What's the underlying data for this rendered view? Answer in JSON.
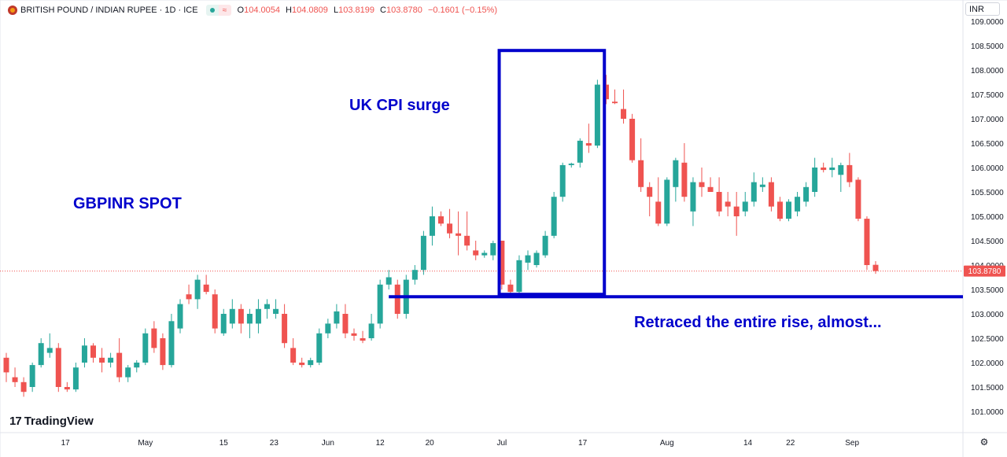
{
  "header": {
    "title": "BRITISH POUND / INDIAN RUPEE · 1D · ICE",
    "ohlc": [
      {
        "key": "O",
        "value": "104.0054"
      },
      {
        "key": "H",
        "value": "104.0809"
      },
      {
        "key": "L",
        "value": "103.8199"
      },
      {
        "key": "C",
        "value": "103.8780"
      }
    ],
    "change": "−0.1601 (−0.15%)",
    "wave_icon": "≈"
  },
  "currency_button": "INR",
  "brand": "TradingView",
  "brand_icon": "17",
  "settings_icon": "gear-icon",
  "colors": {
    "up": "#26a69a",
    "down": "#ef5350",
    "annotation": "#0000cc",
    "price_tag": "#ef5350"
  },
  "annotations": {
    "left_label": "GBPINR SPOT",
    "surge_label": "UK CPI surge",
    "retrace_label": "Retraced the entire rise, almost..."
  },
  "chart_data": {
    "type": "candlestick",
    "symbol": "GBPINR",
    "interval": "1D",
    "ylim": [
      100.7,
      109.1
    ],
    "y_ticks": [
      "109.0000",
      "108.5000",
      "108.0000",
      "107.5000",
      "107.0000",
      "106.5000",
      "106.0000",
      "105.5000",
      "105.0000",
      "104.5000",
      "104.0000",
      "103.5000",
      "103.0000",
      "102.5000",
      "102.0000",
      "101.5000",
      "101.0000"
    ],
    "last_price": "103.8780",
    "x_ticks": [
      {
        "label": "17",
        "index": 6.8
      },
      {
        "label": "May",
        "index": 16
      },
      {
        "label": "15",
        "index": 25
      },
      {
        "label": "23",
        "index": 30.8
      },
      {
        "label": "Jun",
        "index": 37
      },
      {
        "label": "12",
        "index": 43
      },
      {
        "label": "20",
        "index": 48.7
      },
      {
        "label": "Jul",
        "index": 57
      },
      {
        "label": "17",
        "index": 66.3
      },
      {
        "label": "Aug",
        "index": 76
      },
      {
        "label": "14",
        "index": 85.3
      },
      {
        "label": "22",
        "index": 90.2
      },
      {
        "label": "Sep",
        "index": 97.3
      }
    ],
    "candles": [
      {
        "o": 102.1,
        "h": 102.2,
        "l": 101.6,
        "c": 101.8
      },
      {
        "o": 101.7,
        "h": 101.9,
        "l": 101.5,
        "c": 101.6
      },
      {
        "o": 101.6,
        "h": 101.7,
        "l": 101.3,
        "c": 101.4
      },
      {
        "o": 101.5,
        "h": 102.0,
        "l": 101.4,
        "c": 101.95
      },
      {
        "o": 101.95,
        "h": 102.5,
        "l": 101.9,
        "c": 102.4
      },
      {
        "o": 102.2,
        "h": 102.6,
        "l": 102.1,
        "c": 102.3
      },
      {
        "o": 102.3,
        "h": 102.4,
        "l": 101.4,
        "c": 101.5
      },
      {
        "o": 101.5,
        "h": 101.6,
        "l": 101.4,
        "c": 101.45
      },
      {
        "o": 101.45,
        "h": 102.0,
        "l": 101.4,
        "c": 101.9
      },
      {
        "o": 102.0,
        "h": 102.5,
        "l": 101.9,
        "c": 102.35
      },
      {
        "o": 102.35,
        "h": 102.4,
        "l": 102.0,
        "c": 102.1
      },
      {
        "o": 102.1,
        "h": 102.3,
        "l": 101.8,
        "c": 102.0
      },
      {
        "o": 102.0,
        "h": 102.2,
        "l": 101.9,
        "c": 102.1
      },
      {
        "o": 102.2,
        "h": 102.5,
        "l": 101.6,
        "c": 101.7
      },
      {
        "o": 101.7,
        "h": 101.95,
        "l": 101.6,
        "c": 101.9
      },
      {
        "o": 101.9,
        "h": 102.05,
        "l": 101.8,
        "c": 102.0
      },
      {
        "o": 102.0,
        "h": 102.7,
        "l": 101.95,
        "c": 102.6
      },
      {
        "o": 102.7,
        "h": 102.85,
        "l": 102.2,
        "c": 102.3
      },
      {
        "o": 102.5,
        "h": 102.6,
        "l": 101.85,
        "c": 101.95
      },
      {
        "o": 101.95,
        "h": 103.0,
        "l": 101.9,
        "c": 102.85
      },
      {
        "o": 102.7,
        "h": 103.3,
        "l": 102.6,
        "c": 103.2
      },
      {
        "o": 103.4,
        "h": 103.6,
        "l": 103.2,
        "c": 103.3
      },
      {
        "o": 103.3,
        "h": 103.8,
        "l": 103.1,
        "c": 103.7
      },
      {
        "o": 103.6,
        "h": 103.8,
        "l": 103.4,
        "c": 103.45
      },
      {
        "o": 103.4,
        "h": 103.5,
        "l": 102.6,
        "c": 102.7
      },
      {
        "o": 102.6,
        "h": 103.1,
        "l": 102.55,
        "c": 103.0
      },
      {
        "o": 102.8,
        "h": 103.3,
        "l": 102.7,
        "c": 103.1
      },
      {
        "o": 103.1,
        "h": 103.2,
        "l": 102.6,
        "c": 102.8
      },
      {
        "o": 102.8,
        "h": 103.1,
        "l": 102.5,
        "c": 103.0
      },
      {
        "o": 102.8,
        "h": 103.3,
        "l": 102.6,
        "c": 103.1
      },
      {
        "o": 103.1,
        "h": 103.3,
        "l": 102.9,
        "c": 103.2
      },
      {
        "o": 103.0,
        "h": 103.3,
        "l": 102.9,
        "c": 103.1
      },
      {
        "o": 103.0,
        "h": 103.2,
        "l": 102.3,
        "c": 102.4
      },
      {
        "o": 102.3,
        "h": 102.5,
        "l": 101.95,
        "c": 102.0
      },
      {
        "o": 102.0,
        "h": 102.1,
        "l": 101.9,
        "c": 101.95
      },
      {
        "o": 101.95,
        "h": 102.1,
        "l": 101.9,
        "c": 102.05
      },
      {
        "o": 102.0,
        "h": 102.7,
        "l": 101.95,
        "c": 102.6
      },
      {
        "o": 102.6,
        "h": 102.9,
        "l": 102.5,
        "c": 102.8
      },
      {
        "o": 102.8,
        "h": 103.2,
        "l": 102.7,
        "c": 103.05
      },
      {
        "o": 103.0,
        "h": 103.2,
        "l": 102.5,
        "c": 102.6
      },
      {
        "o": 102.6,
        "h": 102.7,
        "l": 102.45,
        "c": 102.55
      },
      {
        "o": 102.5,
        "h": 102.65,
        "l": 102.4,
        "c": 102.45
      },
      {
        "o": 102.5,
        "h": 103.0,
        "l": 102.45,
        "c": 102.8
      },
      {
        "o": 102.8,
        "h": 103.7,
        "l": 102.7,
        "c": 103.6
      },
      {
        "o": 103.6,
        "h": 103.9,
        "l": 103.5,
        "c": 103.75
      },
      {
        "o": 103.6,
        "h": 103.7,
        "l": 102.9,
        "c": 103.0
      },
      {
        "o": 103.0,
        "h": 103.8,
        "l": 102.9,
        "c": 103.7
      },
      {
        "o": 103.7,
        "h": 104.0,
        "l": 103.6,
        "c": 103.9
      },
      {
        "o": 103.9,
        "h": 104.7,
        "l": 103.8,
        "c": 104.6
      },
      {
        "o": 104.6,
        "h": 105.2,
        "l": 104.4,
        "c": 105.0
      },
      {
        "o": 105.0,
        "h": 105.1,
        "l": 104.8,
        "c": 104.85
      },
      {
        "o": 104.85,
        "h": 105.15,
        "l": 104.55,
        "c": 104.65
      },
      {
        "o": 104.65,
        "h": 105.1,
        "l": 104.2,
        "c": 104.6
      },
      {
        "o": 104.6,
        "h": 105.1,
        "l": 104.3,
        "c": 104.4
      },
      {
        "o": 104.3,
        "h": 104.5,
        "l": 104.1,
        "c": 104.2
      },
      {
        "o": 104.2,
        "h": 104.3,
        "l": 104.15,
        "c": 104.25
      },
      {
        "o": 104.2,
        "h": 104.5,
        "l": 104.1,
        "c": 104.45
      },
      {
        "o": 104.5,
        "h": 104.5,
        "l": 103.5,
        "c": 103.6
      },
      {
        "o": 103.6,
        "h": 103.7,
        "l": 103.4,
        "c": 103.45
      },
      {
        "o": 103.45,
        "h": 104.2,
        "l": 103.4,
        "c": 104.1
      },
      {
        "o": 104.05,
        "h": 104.3,
        "l": 103.9,
        "c": 104.2
      },
      {
        "o": 104.0,
        "h": 104.3,
        "l": 103.95,
        "c": 104.25
      },
      {
        "o": 104.2,
        "h": 104.7,
        "l": 104.15,
        "c": 104.6
      },
      {
        "o": 104.6,
        "h": 105.5,
        "l": 104.55,
        "c": 105.4
      },
      {
        "o": 105.4,
        "h": 106.1,
        "l": 105.3,
        "c": 106.05
      },
      {
        "o": 106.05,
        "h": 106.1,
        "l": 106.0,
        "c": 106.08
      },
      {
        "o": 106.1,
        "h": 106.6,
        "l": 106.0,
        "c": 106.55
      },
      {
        "o": 106.5,
        "h": 106.9,
        "l": 106.3,
        "c": 106.45
      },
      {
        "o": 106.45,
        "h": 107.8,
        "l": 106.4,
        "c": 107.7
      },
      {
        "o": 107.7,
        "h": 107.9,
        "l": 107.3,
        "c": 107.4
      },
      {
        "o": 107.35,
        "h": 107.6,
        "l": 107.3,
        "c": 107.32
      },
      {
        "o": 107.2,
        "h": 107.6,
        "l": 106.9,
        "c": 107.0
      },
      {
        "o": 107.0,
        "h": 107.1,
        "l": 106.1,
        "c": 106.15
      },
      {
        "o": 106.15,
        "h": 106.6,
        "l": 105.5,
        "c": 105.6
      },
      {
        "o": 105.6,
        "h": 105.7,
        "l": 105.0,
        "c": 105.4
      },
      {
        "o": 105.3,
        "h": 105.8,
        "l": 104.8,
        "c": 104.85
      },
      {
        "o": 104.85,
        "h": 105.8,
        "l": 104.8,
        "c": 105.75
      },
      {
        "o": 105.6,
        "h": 106.2,
        "l": 105.3,
        "c": 106.15
      },
      {
        "o": 106.1,
        "h": 106.5,
        "l": 105.3,
        "c": 105.4
      },
      {
        "o": 105.1,
        "h": 105.8,
        "l": 104.8,
        "c": 105.7
      },
      {
        "o": 105.7,
        "h": 106.0,
        "l": 105.4,
        "c": 105.6
      },
      {
        "o": 105.6,
        "h": 105.8,
        "l": 105.5,
        "c": 105.5
      },
      {
        "o": 105.5,
        "h": 105.8,
        "l": 105.0,
        "c": 105.1
      },
      {
        "o": 105.3,
        "h": 105.5,
        "l": 105.0,
        "c": 105.2
      },
      {
        "o": 105.2,
        "h": 105.5,
        "l": 104.6,
        "c": 105.0
      },
      {
        "o": 105.1,
        "h": 105.5,
        "l": 105.0,
        "c": 105.3
      },
      {
        "o": 105.3,
        "h": 105.9,
        "l": 105.2,
        "c": 105.7
      },
      {
        "o": 105.6,
        "h": 105.8,
        "l": 105.5,
        "c": 105.65
      },
      {
        "o": 105.7,
        "h": 105.8,
        "l": 105.1,
        "c": 105.2
      },
      {
        "o": 105.3,
        "h": 105.4,
        "l": 104.9,
        "c": 104.95
      },
      {
        "o": 104.95,
        "h": 105.35,
        "l": 104.9,
        "c": 105.3
      },
      {
        "o": 105.1,
        "h": 105.5,
        "l": 105.0,
        "c": 105.4
      },
      {
        "o": 105.3,
        "h": 105.7,
        "l": 105.2,
        "c": 105.6
      },
      {
        "o": 105.5,
        "h": 106.2,
        "l": 105.4,
        "c": 106.0
      },
      {
        "o": 106.0,
        "h": 106.1,
        "l": 105.9,
        "c": 105.95
      },
      {
        "o": 105.95,
        "h": 106.2,
        "l": 105.8,
        "c": 106.0
      },
      {
        "o": 105.85,
        "h": 106.1,
        "l": 105.5,
        "c": 106.05
      },
      {
        "o": 106.05,
        "h": 106.3,
        "l": 105.6,
        "c": 105.7
      },
      {
        "o": 105.75,
        "h": 105.8,
        "l": 104.9,
        "c": 104.95
      },
      {
        "o": 104.95,
        "h": 105.0,
        "l": 103.9,
        "c": 104.0
      },
      {
        "o": 104.0054,
        "h": 104.0809,
        "l": 103.8199,
        "c": 103.878
      }
    ],
    "surge_box": {
      "from_index": 56.7,
      "to_index": 68.8,
      "low": 103.4,
      "high": 108.4
    },
    "support_line": {
      "from_index": 44,
      "price": 103.35
    }
  }
}
